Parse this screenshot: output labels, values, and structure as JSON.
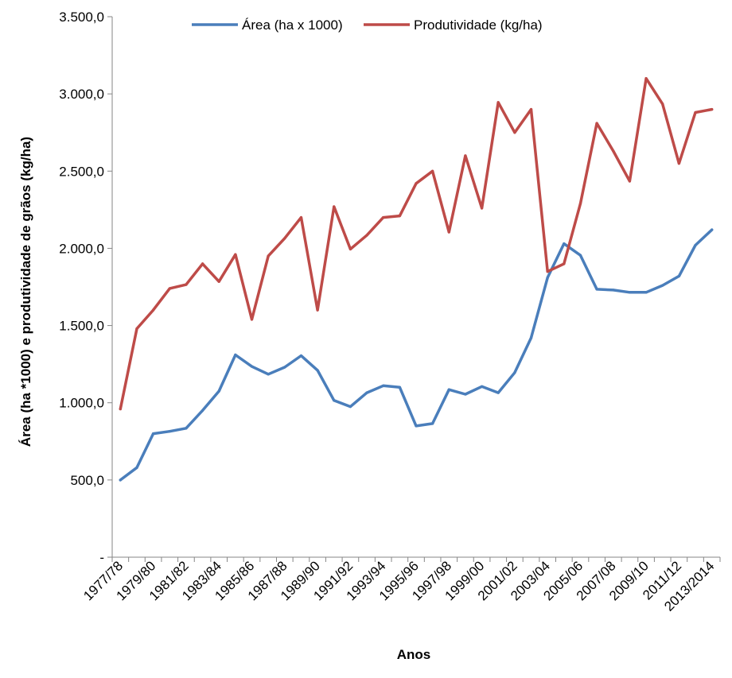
{
  "chart_data": {
    "type": "line",
    "xlabel": "Anos",
    "ylabel": "Área (ha *1000) e produtividade de grãos (kg/ha)",
    "ylim": [
      0,
      3500
    ],
    "ytick_labels": [
      "-",
      "500,0",
      "1.000,0",
      "1.500,0",
      "2.000,0",
      "2.500,0",
      "3.000,0",
      "3.500,0"
    ],
    "ytick_values": [
      0,
      500,
      1000,
      1500,
      2000,
      2500,
      3000,
      3500
    ],
    "grid": false,
    "legend_position": "top",
    "categories": [
      "1977/78",
      "1978/79",
      "1979/80",
      "1980/81",
      "1981/82",
      "1982/83",
      "1983/84",
      "1984/85",
      "1985/86",
      "1986/87",
      "1987/88",
      "1988/89",
      "1989/90",
      "1990/91",
      "1991/92",
      "1992/93",
      "1993/94",
      "1994/95",
      "1995/96",
      "1996/97",
      "1997/98",
      "1998/99",
      "1999/00",
      "2000/01",
      "2001/02",
      "2002/03",
      "2003/04",
      "2004/05",
      "2005/06",
      "2006/07",
      "2007/08",
      "2008/09",
      "2009/10",
      "2010/11",
      "2011/12",
      "2012/13",
      "2013/2014"
    ],
    "shown_tick_labels": [
      "1977/78",
      "1979/80",
      "1981/82",
      "1983/84",
      "1985/86",
      "1987/88",
      "1989/90",
      "1991/92",
      "1993/94",
      "1995/96",
      "1997/98",
      "1999/00",
      "2001/02",
      "2003/04",
      "2005/06",
      "2007/08",
      "2009/10",
      "2011/12",
      "2013/2014"
    ],
    "series": [
      {
        "name": "Área (ha x 1000)",
        "color": "#4a7ebb",
        "values": [
          500,
          580,
          800,
          815,
          835,
          950,
          1075,
          1310,
          1235,
          1185,
          1230,
          1305,
          1210,
          1015,
          975,
          1065,
          1110,
          1100,
          850,
          865,
          1085,
          1055,
          1105,
          1065,
          1195,
          1420,
          1810,
          2030,
          1955,
          1735,
          1730,
          1715,
          1715,
          1760,
          1820,
          2020,
          2120
        ]
      },
      {
        "name": "Produtividade (kg/ha)",
        "color": "#be4b48",
        "values": [
          960,
          1480,
          1600,
          1740,
          1765,
          1900,
          1785,
          1960,
          1540,
          1950,
          2065,
          2200,
          1600,
          2270,
          1995,
          2085,
          2200,
          2210,
          2420,
          2500,
          2105,
          2600,
          2260,
          2945,
          2750,
          2900,
          1850,
          1900,
          2290,
          2810,
          2630,
          2435,
          3100,
          2935,
          2550,
          2880,
          2900
        ]
      }
    ]
  }
}
